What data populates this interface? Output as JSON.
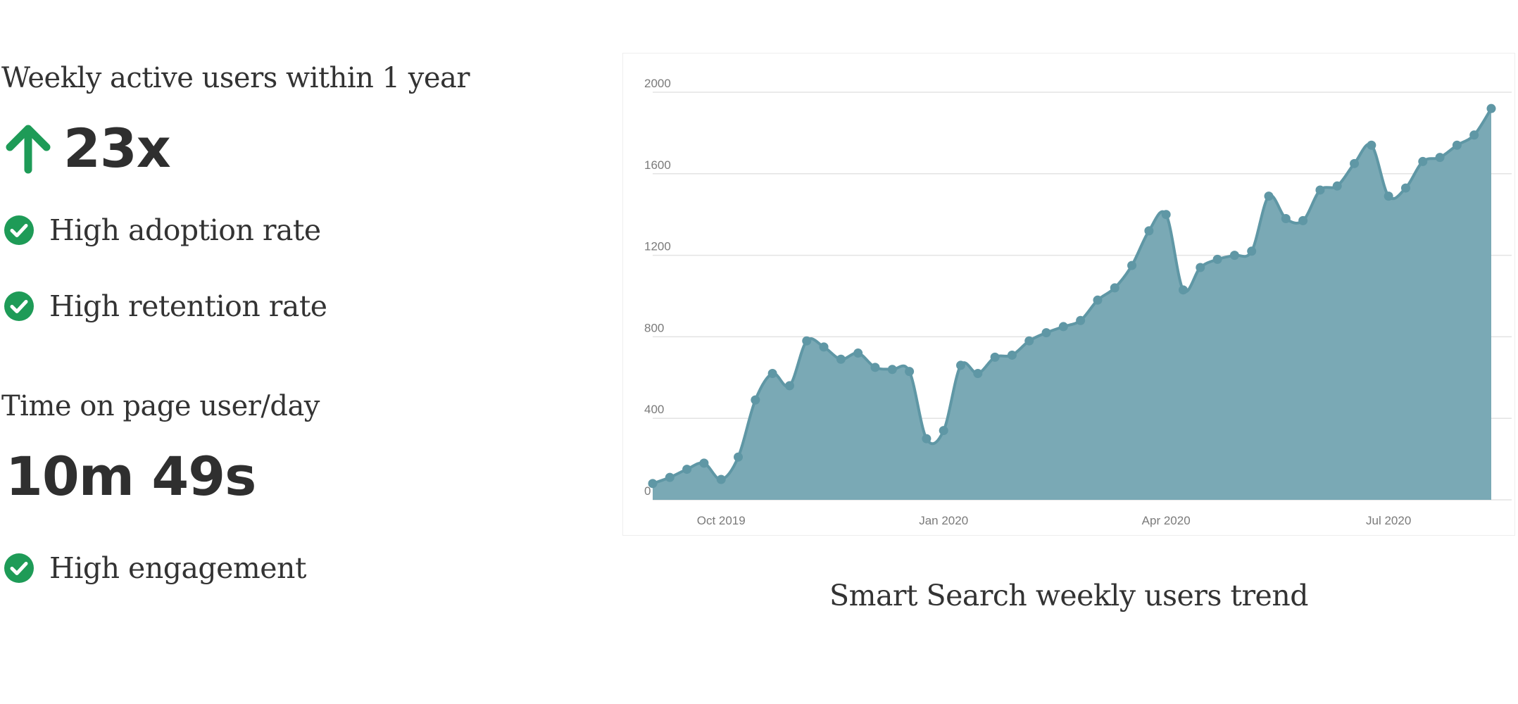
{
  "metrics": {
    "wau_heading": "Weekly active users within 1 year",
    "wau_value": "23x",
    "checks_1": [
      "High adoption rate",
      "High retention rate"
    ],
    "time_heading": "Time on page user/day",
    "time_value": "10m 49s",
    "checks_2": [
      "High engagement"
    ]
  },
  "colors": {
    "accent_green": "#1e9b57",
    "area_fill": "#7aa9b5",
    "line": "#5f97a5",
    "grid": "#e3e3e3"
  },
  "icons": {
    "up": "arrow-up-icon",
    "check": "check-circle-icon"
  },
  "caption": "Smart Search weekly users trend",
  "chart_data": {
    "type": "area",
    "title": "",
    "xlabel": "",
    "ylabel": "",
    "ylim": [
      0,
      2000
    ],
    "yticks": [
      0,
      400,
      800,
      1200,
      1600,
      2000
    ],
    "xticks": [
      "Oct 2019",
      "Jan 2020",
      "Apr 2020",
      "Jul 2020"
    ],
    "xtick_index": [
      4,
      17,
      30,
      43
    ],
    "grid": true,
    "legend": "none",
    "series": [
      {
        "values": [
          80,
          110,
          150,
          180,
          100,
          210,
          490,
          620,
          560,
          780,
          750,
          690,
          720,
          650,
          640,
          630,
          300,
          340,
          660,
          620,
          700,
          710,
          780,
          820,
          850,
          880,
          980,
          1040,
          1150,
          1320,
          1400,
          1030,
          1140,
          1180,
          1200,
          1220,
          1490,
          1380,
          1370,
          1520,
          1540,
          1650,
          1740,
          1490,
          1530,
          1660,
          1680,
          1740,
          1790,
          1920
        ]
      }
    ]
  }
}
